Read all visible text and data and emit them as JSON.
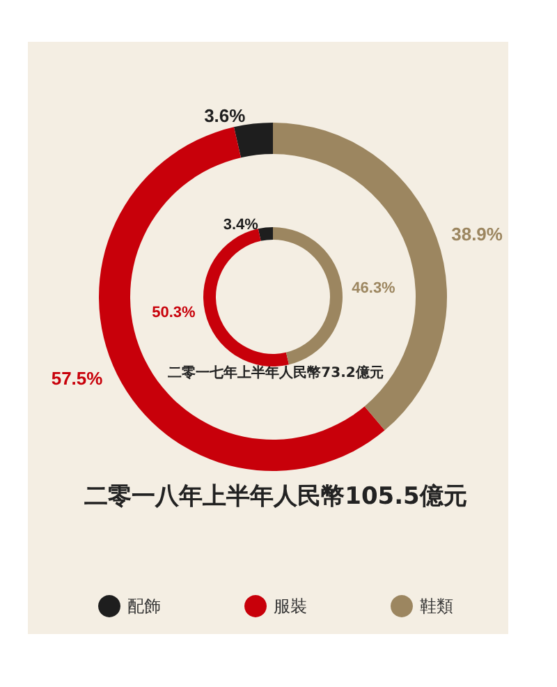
{
  "chart_data": {
    "type": "donut",
    "categories": [
      "配飾",
      "服裝",
      "鞋類"
    ],
    "colors": [
      "#1e1e1e",
      "#c8000a",
      "#9c8660"
    ],
    "legend": "bottom",
    "series": [
      {
        "name": "二零一八年上半年人民幣105.5億元",
        "values": [
          3.6,
          57.5,
          38.9
        ],
        "value_labels": [
          "3.6%",
          "57.5%",
          "38.9%"
        ]
      },
      {
        "name": "二零一七年上半年人民幣73.2億元",
        "values": [
          3.4,
          50.3,
          46.3
        ],
        "value_labels": [
          "3.4%",
          "50.3%",
          "46.3%"
        ]
      }
    ]
  }
}
